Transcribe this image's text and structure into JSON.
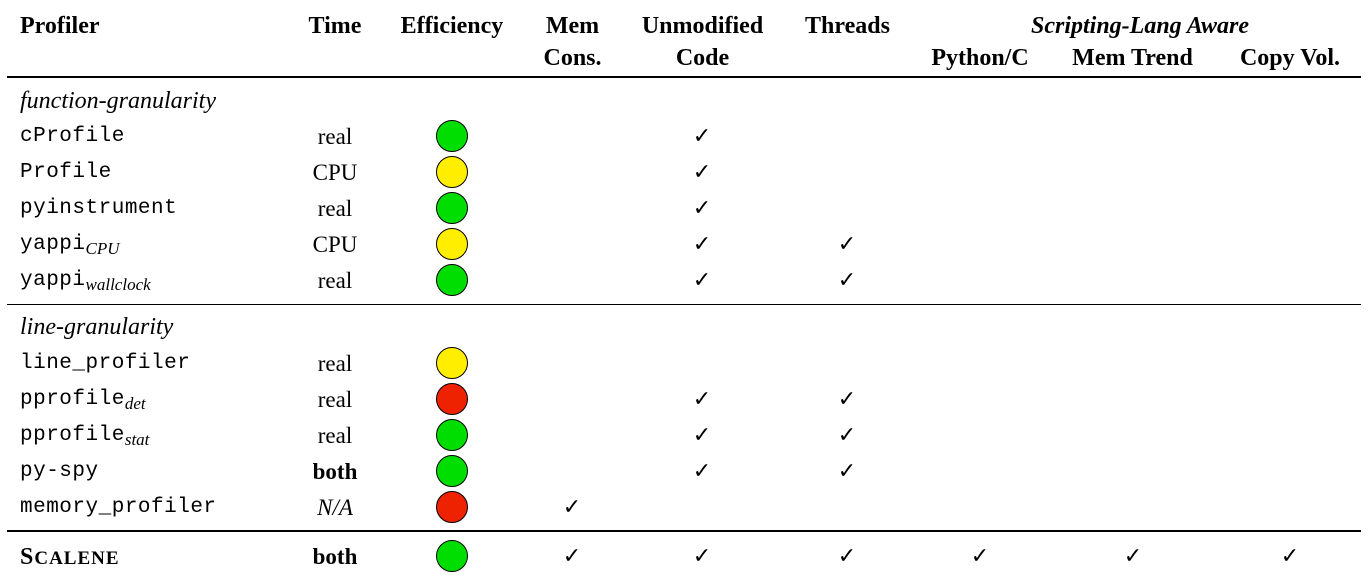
{
  "headers": {
    "profiler": "Profiler",
    "time": "Time",
    "efficiency": "Efficiency",
    "mem_1": "Mem",
    "mem_2": "Cons.",
    "unmod_1": "Unmodified",
    "unmod_2": "Code",
    "threads": "Threads",
    "scripting": "Scripting-Lang Aware",
    "python_c": "Python/C",
    "mem_trend": "Mem Trend",
    "copy_vol": "Copy Vol."
  },
  "check_glyph": "✓",
  "efficiency_colors": {
    "green": "#00dd00",
    "yellow": "#ffee00",
    "red": "#ee2200"
  },
  "sections": {
    "function": "function-granularity",
    "line": "line-granularity"
  },
  "rows": [
    {
      "name": "cProfile",
      "sub": "",
      "time": "real",
      "time_style": "normal",
      "efficiency": "green",
      "mem": false,
      "unmod": true,
      "threads": false,
      "pyc": false,
      "trend": false,
      "copy": false
    },
    {
      "name": "Profile",
      "sub": "",
      "time": "CPU",
      "time_style": "normal",
      "efficiency": "yellow",
      "mem": false,
      "unmod": true,
      "threads": false,
      "pyc": false,
      "trend": false,
      "copy": false
    },
    {
      "name": "pyinstrument",
      "sub": "",
      "time": "real",
      "time_style": "normal",
      "efficiency": "green",
      "mem": false,
      "unmod": true,
      "threads": false,
      "pyc": false,
      "trend": false,
      "copy": false
    },
    {
      "name": "yappi",
      "sub": "CPU",
      "time": "CPU",
      "time_style": "normal",
      "efficiency": "yellow",
      "mem": false,
      "unmod": true,
      "threads": true,
      "pyc": false,
      "trend": false,
      "copy": false
    },
    {
      "name": "yappi",
      "sub": "wallclock",
      "time": "real",
      "time_style": "normal",
      "efficiency": "green",
      "mem": false,
      "unmod": true,
      "threads": true,
      "pyc": false,
      "trend": false,
      "copy": false
    },
    {
      "name": "line_profiler",
      "sub": "",
      "time": "real",
      "time_style": "normal",
      "efficiency": "yellow",
      "mem": false,
      "unmod": false,
      "threads": false,
      "pyc": false,
      "trend": false,
      "copy": false
    },
    {
      "name": "pprofile",
      "sub": "det",
      "time": "real",
      "time_style": "normal",
      "efficiency": "red",
      "mem": false,
      "unmod": true,
      "threads": true,
      "pyc": false,
      "trend": false,
      "copy": false
    },
    {
      "name": "pprofile",
      "sub": "stat",
      "time": "real",
      "time_style": "normal",
      "efficiency": "green",
      "mem": false,
      "unmod": true,
      "threads": true,
      "pyc": false,
      "trend": false,
      "copy": false
    },
    {
      "name": "py-spy",
      "sub": "",
      "time": "both",
      "time_style": "bold",
      "efficiency": "green",
      "mem": false,
      "unmod": true,
      "threads": true,
      "pyc": false,
      "trend": false,
      "copy": false
    },
    {
      "name": "memory_profiler",
      "sub": "",
      "time": "N/A",
      "time_style": "italic",
      "efficiency": "red",
      "mem": true,
      "unmod": false,
      "threads": false,
      "pyc": false,
      "trend": false,
      "copy": false
    }
  ],
  "scalene": {
    "name_first": "S",
    "name_rest": "CALENE",
    "time": "both",
    "efficiency": "green",
    "mem": true,
    "unmod": true,
    "threads": true,
    "pyc": true,
    "trend": true,
    "copy": true
  }
}
